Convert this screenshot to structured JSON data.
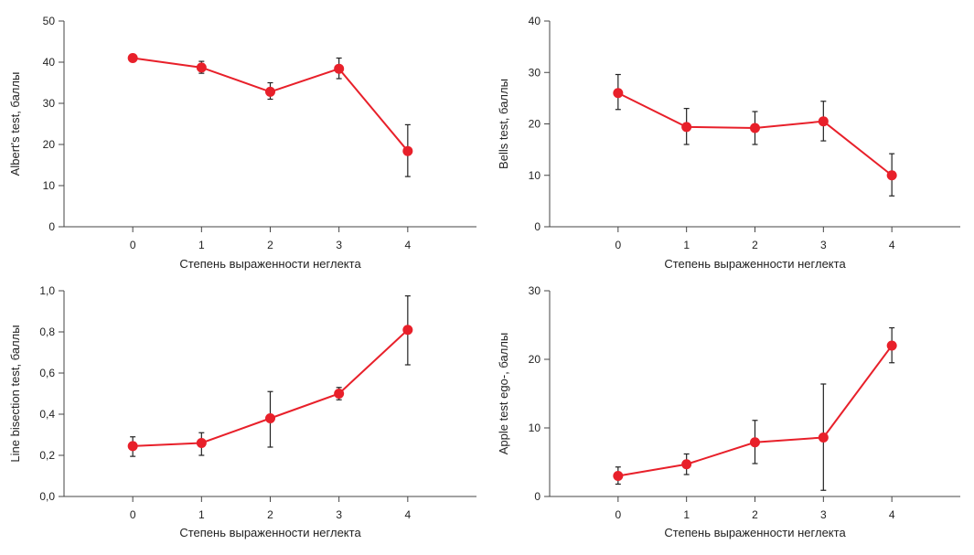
{
  "colors": {
    "series": "#e8202a",
    "axis": "#444444",
    "errorbar": "#222222"
  },
  "chart_data": [
    {
      "type": "line",
      "xlabel": "Степень выраженности неглекта",
      "ylabel": "Albert's test, баллы",
      "x": [
        0,
        1,
        2,
        3,
        4
      ],
      "xticks": [
        "0",
        "1",
        "2",
        "3",
        "4"
      ],
      "xlim": [
        -1,
        5
      ],
      "ylim": [
        0,
        50
      ],
      "yticks": [
        "0",
        "10",
        "20",
        "30",
        "40",
        "50"
      ],
      "ytick_values": [
        0,
        10,
        20,
        30,
        40,
        50
      ],
      "series": [
        {
          "values": [
            41,
            38.7,
            32.8,
            38.4,
            18.4
          ],
          "err_low": [
            41,
            37.3,
            31,
            36,
            12.2
          ],
          "err_high": [
            41,
            40.2,
            35,
            41,
            24.8
          ]
        }
      ]
    },
    {
      "type": "line",
      "xlabel": "Степень выраженности неглекта",
      "ylabel": "Bells test, баллы",
      "x": [
        0,
        1,
        2,
        3,
        4
      ],
      "xticks": [
        "0",
        "1",
        "2",
        "3",
        "4"
      ],
      "xlim": [
        -1,
        5
      ],
      "ylim": [
        0,
        40
      ],
      "yticks": [
        "0",
        "10",
        "20",
        "30",
        "40"
      ],
      "ytick_values": [
        0,
        10,
        20,
        30,
        40
      ],
      "series": [
        {
          "values": [
            26,
            19.4,
            19.2,
            20.5,
            10
          ],
          "err_low": [
            22.8,
            16,
            16,
            16.7,
            6
          ],
          "err_high": [
            29.6,
            23,
            22.4,
            24.4,
            14.2
          ]
        }
      ]
    },
    {
      "type": "line",
      "xlabel": "Степень выраженности неглекта",
      "ylabel": "Line bisection test, баллы",
      "x": [
        0,
        1,
        2,
        3,
        4
      ],
      "xticks": [
        "0",
        "1",
        "2",
        "3",
        "4"
      ],
      "xlim": [
        -1,
        5
      ],
      "ylim": [
        0,
        1
      ],
      "yticks": [
        "0,0",
        "0,2",
        "0,4",
        "0,6",
        "0,8",
        "1,0"
      ],
      "ytick_values": [
        0,
        0.2,
        0.4,
        0.6,
        0.8,
        1.0
      ],
      "series": [
        {
          "values": [
            0.245,
            0.26,
            0.38,
            0.5,
            0.81
          ],
          "err_low": [
            0.195,
            0.2,
            0.24,
            0.47,
            0.64
          ],
          "err_high": [
            0.29,
            0.31,
            0.51,
            0.53,
            0.975
          ]
        }
      ]
    },
    {
      "type": "line",
      "xlabel": "Степень выраженности неглекта",
      "ylabel": "Apple test ego-, баллы",
      "x": [
        0,
        1,
        2,
        3,
        4
      ],
      "xticks": [
        "0",
        "1",
        "2",
        "3",
        "4"
      ],
      "xlim": [
        -1,
        5
      ],
      "ylim": [
        0,
        30
      ],
      "yticks": [
        "0",
        "10",
        "20",
        "30"
      ],
      "ytick_values": [
        0,
        10,
        20,
        30
      ],
      "series": [
        {
          "values": [
            3,
            4.7,
            7.9,
            8.6,
            22
          ],
          "err_low": [
            1.8,
            3.2,
            4.8,
            0.9,
            19.5
          ],
          "err_high": [
            4.3,
            6.2,
            11.1,
            16.4,
            24.6
          ]
        }
      ]
    }
  ]
}
